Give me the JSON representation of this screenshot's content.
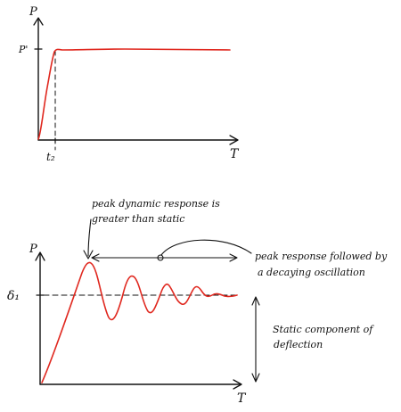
{
  "top_graph": {
    "y_axis_label": "P",
    "x_axis_label": "T",
    "level_label": "P'",
    "time_label": "t₂"
  },
  "bottom_graph": {
    "y_axis_label": "P",
    "x_axis_label": "T",
    "level_label": "δ₁"
  },
  "annotations": {
    "peak_line1": "peak dynamic response is",
    "peak_line2": "greater than static",
    "decay_line1": "peak response followed by",
    "decay_line2": "a decaying oscillation",
    "static_line1": "Static component of",
    "static_line2": "deflection"
  },
  "colors": {
    "response_curve": "#e0281f",
    "ink": "#111111"
  }
}
